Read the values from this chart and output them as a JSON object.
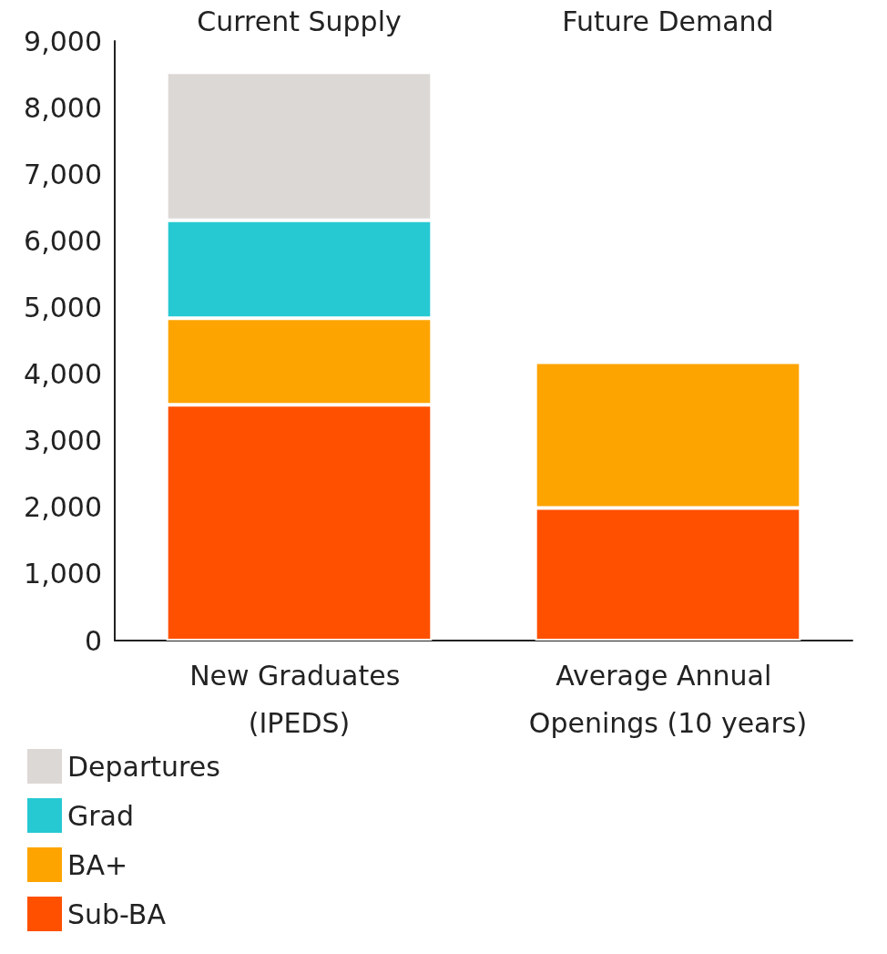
{
  "chart_data": {
    "type": "bar",
    "stacked": true,
    "categories": [
      "New Graduates (IPEDS)",
      "Average Annual Openings (10 years)"
    ],
    "series": [
      {
        "name": "Sub-BA",
        "color": "#ff5000",
        "values": [
          3540,
          1990
        ]
      },
      {
        "name": "BA+",
        "color": "#fea400",
        "values": [
          1300,
          2190
        ]
      },
      {
        "name": "Grad",
        "color": "#26c9d2",
        "values": [
          1470,
          null
        ]
      },
      {
        "name": "Departures",
        "color": "#dcd8d5",
        "values": [
          2220,
          null
        ]
      }
    ],
    "ylim": [
      0,
      9000
    ],
    "yticks": [
      0,
      {
        "value": 1000,
        "label": "1,000"
      },
      {
        "value": 2000,
        "label": "2,000"
      },
      {
        "value": 3000,
        "label": "3,000"
      },
      {
        "value": 4000,
        "label": "4,000"
      },
      {
        "value": 5000,
        "label": "5,000"
      },
      {
        "value": 6000,
        "label": "6,000"
      },
      {
        "value": 7000,
        "label": "7,000"
      },
      {
        "value": 8000,
        "label": "8,000"
      },
      {
        "value": 9000,
        "label": "9,000"
      }
    ],
    "grid": false,
    "legend": "bottom left",
    "annotations": [
      "Current Supply",
      "Future Demand"
    ]
  }
}
